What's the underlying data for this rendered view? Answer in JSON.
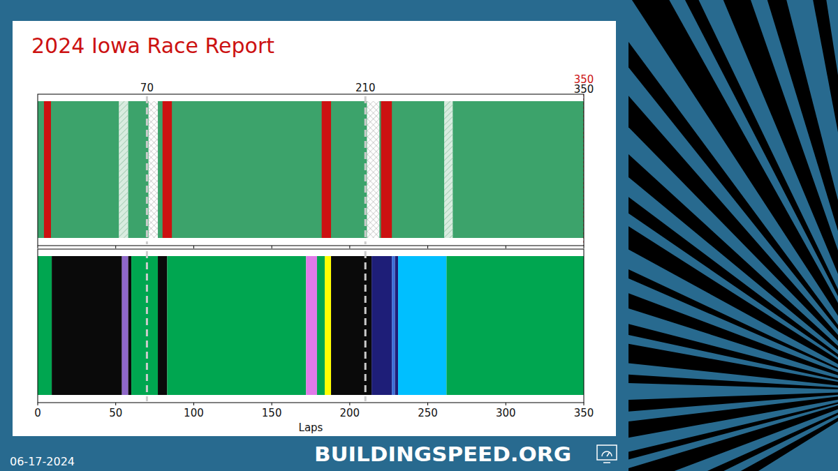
{
  "header": {
    "title": "2024 Iowa Race Report"
  },
  "footer": {
    "date": "06-17-2024",
    "site": "BUILDINGSPEED.ORG"
  },
  "chart_data": [
    {
      "type": "timeline",
      "color": "#3ca36b",
      "xlim": [
        0,
        350
      ],
      "xticks": [
        0,
        50,
        100,
        150,
        200,
        250,
        300,
        350
      ],
      "tick_labels": false,
      "vlines": [
        70,
        210
      ],
      "annotations": [
        {
          "x": 350,
          "text": "350",
          "color": "#cc1111"
        },
        {
          "x": 350,
          "text": "350",
          "color": "#111111"
        }
      ],
      "segments": [
        {
          "start": 52,
          "end": 58,
          "type": "hatch",
          "color": "#d9ece0"
        },
        {
          "start": 71,
          "end": 77,
          "type": "crosshatch",
          "color": "#ffffff"
        },
        {
          "start": 211,
          "end": 219,
          "type": "crosshatch",
          "color": "#ffffff"
        },
        {
          "start": 260.5,
          "end": 266,
          "type": "hatch",
          "color": "#d9ece0"
        },
        {
          "start": 4,
          "end": 8.5,
          "type": "bar",
          "color": "#cc1111"
        },
        {
          "start": 80,
          "end": 86,
          "type": "bar",
          "color": "#cc1111"
        },
        {
          "start": 182,
          "end": 188,
          "type": "bar",
          "color": "#cc1111"
        },
        {
          "start": 220,
          "end": 227,
          "type": "bar",
          "color": "#cc1111"
        }
      ]
    },
    {
      "type": "timeline",
      "xlim": [
        0,
        350
      ],
      "xticks": [
        0,
        50,
        100,
        150,
        200,
        250,
        300,
        350
      ],
      "tick_labels": "x",
      "xlabel": "Laps",
      "vlines": [
        70,
        210
      ],
      "segments": [
        {
          "start": 0,
          "end": 9,
          "type": "bar",
          "color": "#00a650"
        },
        {
          "start": 9,
          "end": 54,
          "type": "bar",
          "color": "#0a0a0a"
        },
        {
          "start": 54,
          "end": 58,
          "type": "bar",
          "color": "#8e67c8"
        },
        {
          "start": 58,
          "end": 60,
          "type": "bar",
          "color": "#0a0a0a"
        },
        {
          "start": 60,
          "end": 77,
          "type": "bar",
          "color": "#00a650"
        },
        {
          "start": 77,
          "end": 83,
          "type": "bar",
          "color": "#0a0a0a"
        },
        {
          "start": 83,
          "end": 172,
          "type": "bar",
          "color": "#00a650"
        },
        {
          "start": 172,
          "end": 179,
          "type": "bar",
          "color": "#e07ae8"
        },
        {
          "start": 179,
          "end": 184,
          "type": "bar",
          "color": "#00a650"
        },
        {
          "start": 184,
          "end": 188,
          "type": "bar",
          "color": "#ffff00"
        },
        {
          "start": 188,
          "end": 214,
          "type": "bar",
          "color": "#0a0a0a"
        },
        {
          "start": 214,
          "end": 227,
          "type": "bar",
          "color": "#1e1e78"
        },
        {
          "start": 227,
          "end": 229,
          "type": "bar",
          "color": "#3d6fd6"
        },
        {
          "start": 229,
          "end": 231,
          "type": "bar",
          "color": "#1e1e78"
        },
        {
          "start": 231,
          "end": 262,
          "type": "bar",
          "color": "#00bfff"
        },
        {
          "start": 262,
          "end": 350,
          "type": "bar",
          "color": "#00a650"
        }
      ]
    }
  ]
}
